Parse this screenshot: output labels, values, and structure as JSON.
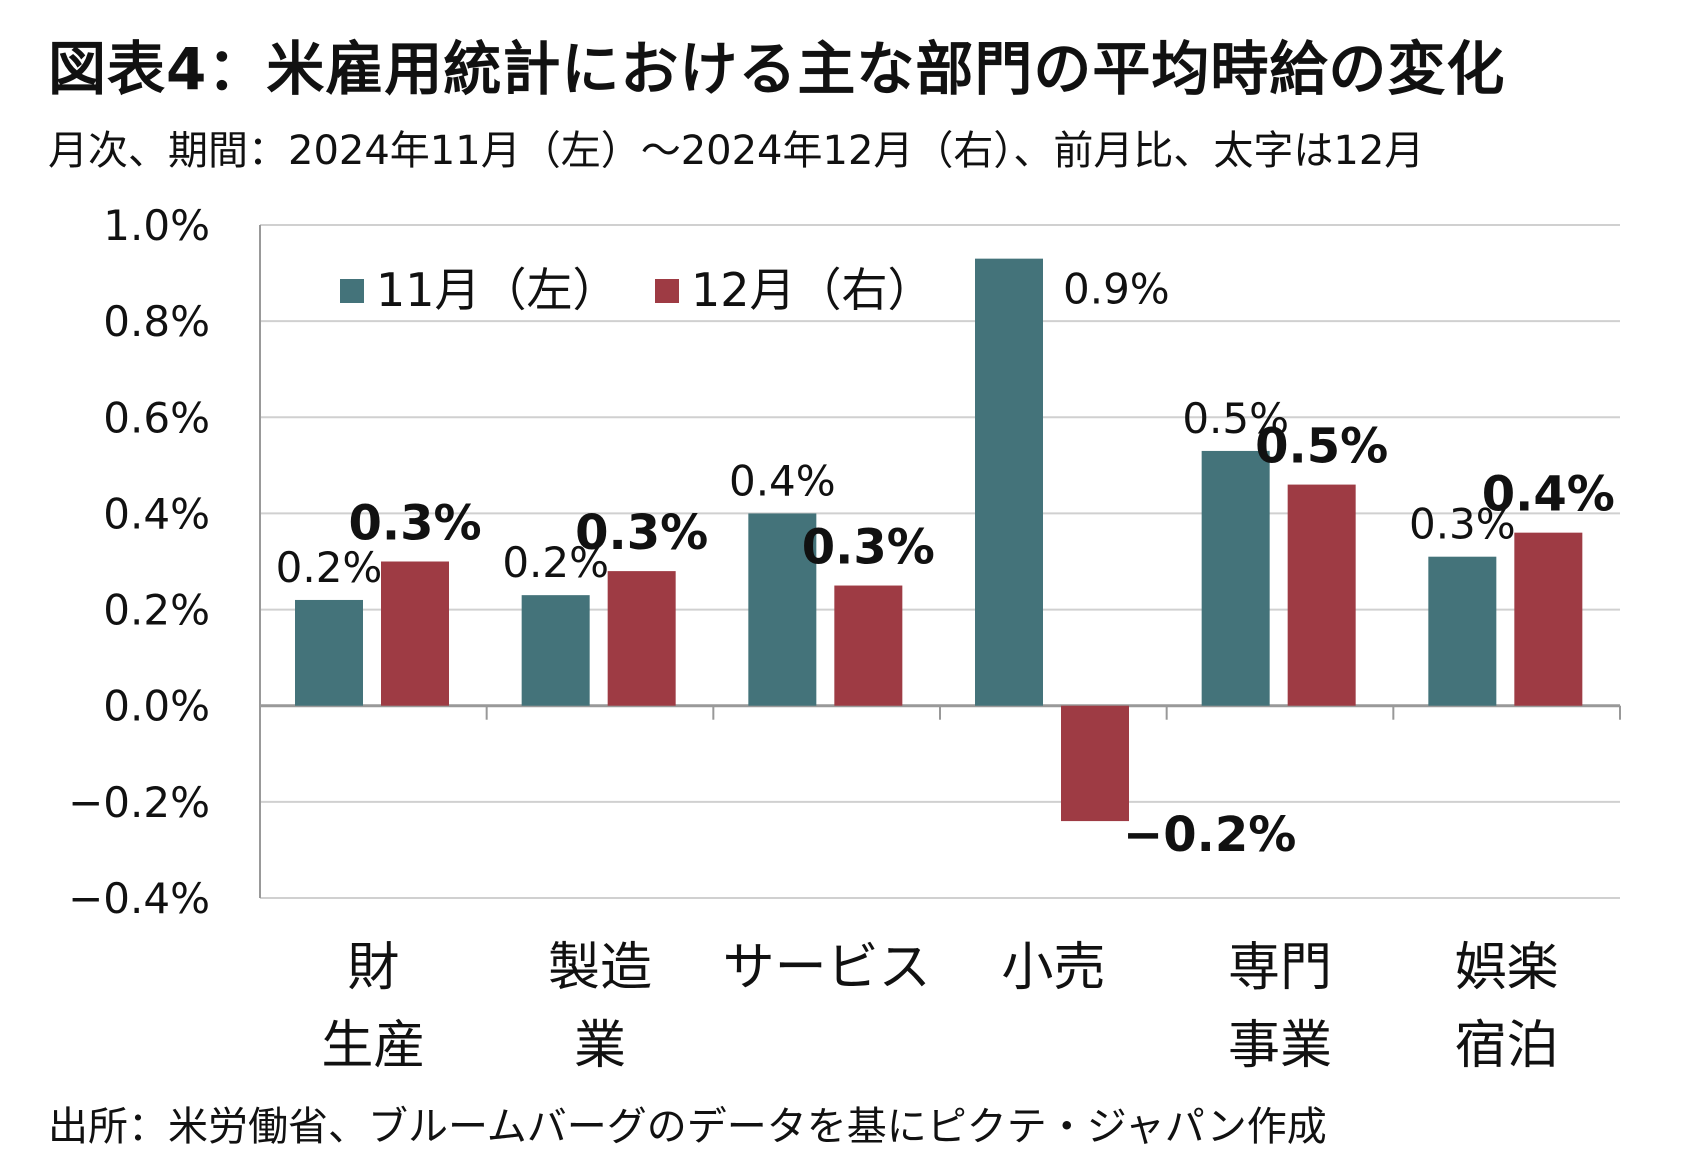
{
  "title": "図表4：米雇用統計における主な部門の平均時給の変化",
  "subtitle": "月次、期間：2024年11月（左）～2024年12月（右）、前月比、太字は12月",
  "source": "出所：米労働省、ブルームバーグのデータを基にピクテ・ジャパン作成",
  "chart_data": {
    "type": "bar",
    "categories": [
      [
        "財",
        "生産"
      ],
      [
        "製造",
        "業"
      ],
      [
        "サービス"
      ],
      [
        "小売"
      ],
      [
        "専門",
        "事業"
      ],
      [
        "娯楽",
        "宿泊"
      ]
    ],
    "series": [
      {
        "name": "11月（左）",
        "color": "#44737a",
        "values": [
          0.22,
          0.23,
          0.4,
          0.93,
          0.53,
          0.31
        ],
        "labels": [
          "0.2%",
          "0.2%",
          "0.4%",
          "0.9%",
          "0.5%",
          "0.3%"
        ],
        "label_weight": "normal"
      },
      {
        "name": "12月（右）",
        "color": "#9e3b44",
        "values": [
          0.3,
          0.28,
          0.25,
          -0.24,
          0.46,
          0.36
        ],
        "labels": [
          "0.3%",
          "0.3%",
          "0.3%",
          "−0.2%",
          "0.5%",
          "0.4%"
        ],
        "label_weight": "bold"
      }
    ],
    "yticks": [
      "1.0%",
      "0.8%",
      "0.6%",
      "0.4%",
      "0.2%",
      "0.0%",
      "−0.2%",
      "−0.4%"
    ],
    "ylim": [
      -0.4,
      1.0
    ],
    "grid": true,
    "legend_position": "top-left"
  }
}
